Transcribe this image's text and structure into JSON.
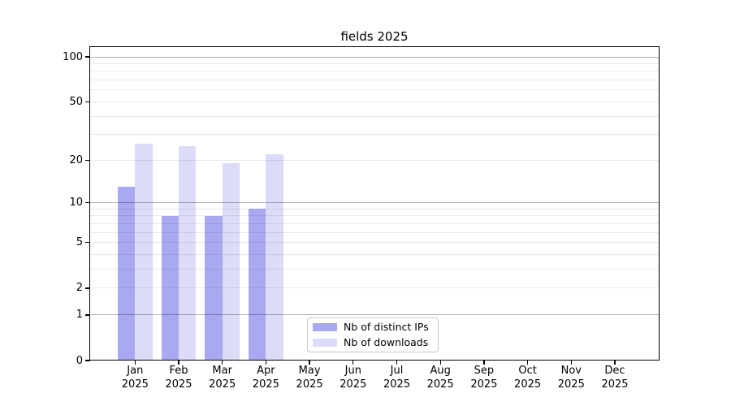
{
  "title": "fields 2025",
  "chart_data": {
    "type": "bar",
    "title": "fields 2025",
    "categories": [
      "Jan 2025",
      "Feb 2025",
      "Mar 2025",
      "Apr 2025",
      "May 2025",
      "Jun 2025",
      "Jul 2025",
      "Aug 2025",
      "Sep 2025",
      "Oct 2025",
      "Nov 2025",
      "Dec 2025"
    ],
    "series": [
      {
        "name": "Nb of distinct IPs",
        "color": "#a9a9f1",
        "values": [
          13,
          8,
          8,
          9,
          0,
          0,
          0,
          0,
          0,
          0,
          0,
          0
        ]
      },
      {
        "name": "Nb of downloads",
        "color": "#dcdcf8",
        "values": [
          26,
          25,
          19,
          22,
          0,
          0,
          0,
          0,
          0,
          0,
          0,
          0
        ]
      }
    ],
    "xlabel": "",
    "ylabel": "",
    "yscale": "log1p",
    "ylim": [
      0,
      100
    ],
    "yticks": [
      0,
      1,
      2,
      5,
      10,
      20,
      50,
      100
    ],
    "yticks_major_decades": [
      1,
      10,
      100
    ],
    "yticks_minor": [
      2,
      3,
      4,
      5,
      6,
      7,
      8,
      9,
      20,
      30,
      40,
      50,
      60,
      70,
      80,
      90
    ],
    "grid": true,
    "legend_position": "lower center inside plot"
  },
  "colors": {
    "background": "#ffffff",
    "spine": "#000000",
    "grid_major": "#b3b3b3",
    "grid_minor": "#e9e9e9",
    "legend_border": "#c9c9c9"
  }
}
